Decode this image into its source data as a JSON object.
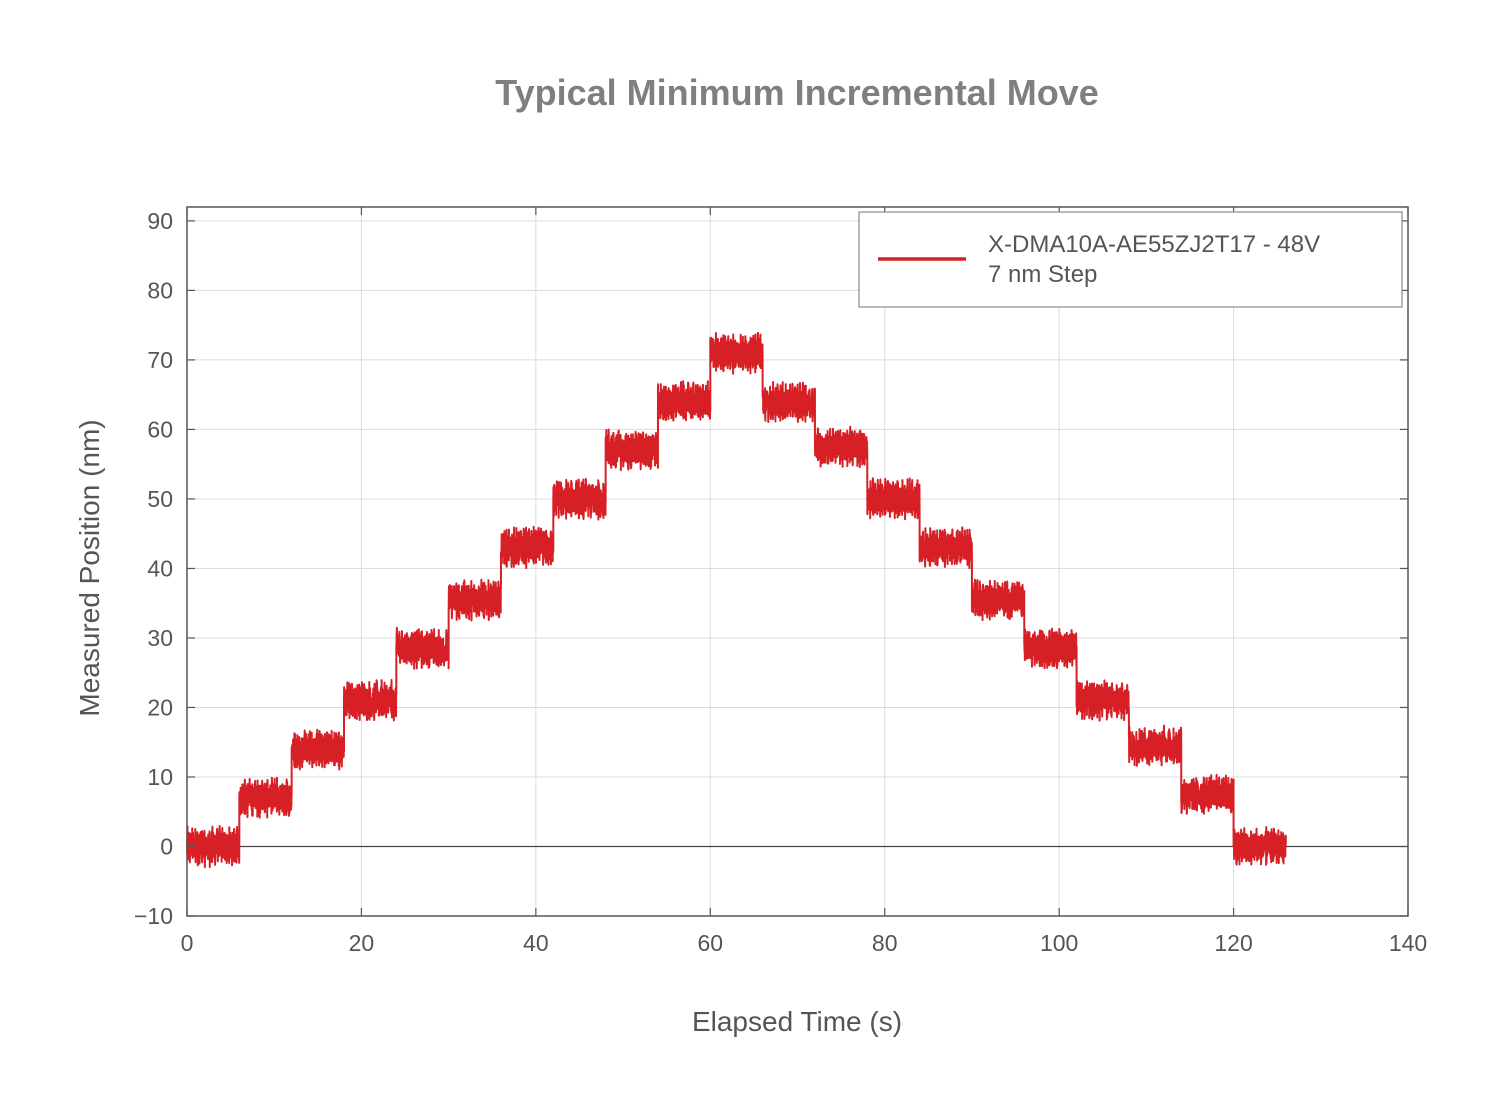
{
  "chart_data": {
    "type": "line",
    "title": "Typical Minimum Incremental Move",
    "xlabel": "Elapsed Time (s)",
    "ylabel": "Measured Position (nm)",
    "xlim": [
      0,
      140
    ],
    "ylim": [
      -10,
      92
    ],
    "xticks": [
      0,
      20,
      40,
      60,
      80,
      100,
      120,
      140
    ],
    "yticks": [
      -10,
      0,
      10,
      20,
      30,
      40,
      50,
      60,
      70,
      80,
      90
    ],
    "xtick_labels": [
      "0",
      "20",
      "40",
      "60",
      "80",
      "100",
      "120",
      "140"
    ],
    "ytick_labels": [
      "−10",
      "0",
      "10",
      "20",
      "30",
      "40",
      "50",
      "60",
      "70",
      "80",
      "90"
    ],
    "grid": true,
    "legend_position": "top-right",
    "series": [
      {
        "name": "X-DMA10A-AE55ZJ2T17 - 48V\n7 nm Step",
        "legend_lines": [
          "X-DMA10A-AE55ZJ2T17 - 48V",
          "7 nm Step"
        ],
        "color": "#d62026",
        "step_size_nm": 7,
        "steps": [
          {
            "t_start": 0,
            "t_end": 6,
            "mean": 0
          },
          {
            "t_start": 6,
            "t_end": 12,
            "mean": 7
          },
          {
            "t_start": 12,
            "t_end": 18,
            "mean": 14
          },
          {
            "t_start": 18,
            "t_end": 24,
            "mean": 21
          },
          {
            "t_start": 24,
            "t_end": 30,
            "mean": 28.5
          },
          {
            "t_start": 30,
            "t_end": 36,
            "mean": 35.5
          },
          {
            "t_start": 36,
            "t_end": 42,
            "mean": 43
          },
          {
            "t_start": 42,
            "t_end": 48,
            "mean": 50
          },
          {
            "t_start": 48,
            "t_end": 54,
            "mean": 57
          },
          {
            "t_start": 54,
            "t_end": 60,
            "mean": 64
          },
          {
            "t_start": 60,
            "t_end": 66,
            "mean": 71
          },
          {
            "t_start": 66,
            "t_end": 72,
            "mean": 64
          },
          {
            "t_start": 72,
            "t_end": 78,
            "mean": 57.5
          },
          {
            "t_start": 78,
            "t_end": 84,
            "mean": 50
          },
          {
            "t_start": 84,
            "t_end": 90,
            "mean": 43
          },
          {
            "t_start": 90,
            "t_end": 96,
            "mean": 35.5
          },
          {
            "t_start": 96,
            "t_end": 102,
            "mean": 28.5
          },
          {
            "t_start": 102,
            "t_end": 108,
            "mean": 21
          },
          {
            "t_start": 108,
            "t_end": 114,
            "mean": 14.5
          },
          {
            "t_start": 114,
            "t_end": 120,
            "mean": 7.5
          },
          {
            "t_start": 120,
            "t_end": 126,
            "mean": 0
          }
        ],
        "noise_amplitude_nm": 3
      }
    ]
  }
}
